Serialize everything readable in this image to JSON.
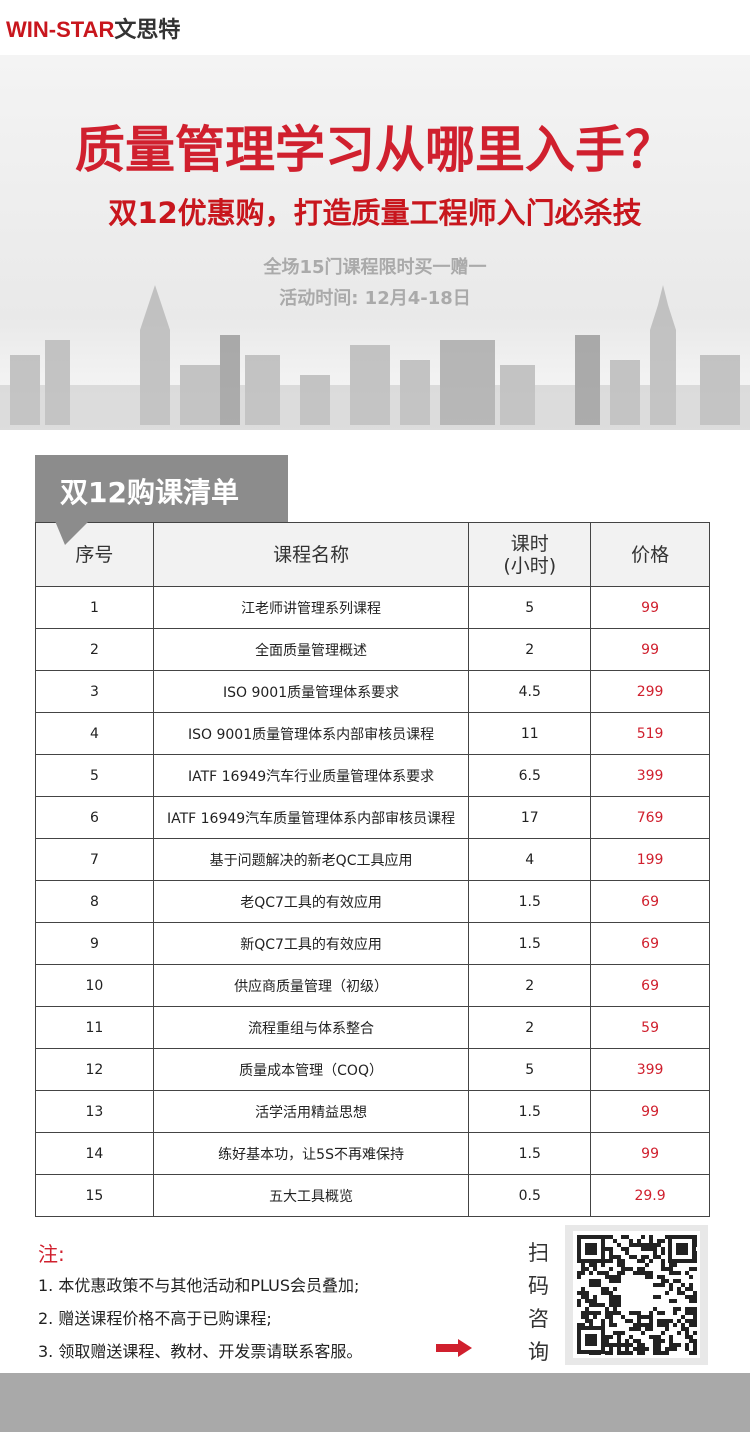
{
  "header": {
    "logo_en": "WIN-STAR",
    "logo_cn": "文思特"
  },
  "banner": {
    "title": "质量管理学习从哪里入手？",
    "subtitle": "双12优惠购，打造质量工程师入门必杀技",
    "line1": "全场15门课程限时买一赠一",
    "line2": "活动时间: 12月4-18日"
  },
  "list": {
    "tab": "双12购课清单",
    "table": {
      "columns": [
        "序号",
        "课程名称",
        "课时\n(小时)",
        "价格"
      ],
      "rows": [
        [
          "1",
          "江老师讲管理系列课程",
          "5",
          "99"
        ],
        [
          "2",
          "全面质量管理概述",
          "2",
          "99"
        ],
        [
          "3",
          "ISO 9001质量管理体系要求",
          "4.5",
          "299"
        ],
        [
          "4",
          "ISO 9001质量管理体系内部审核员课程",
          "11",
          "519"
        ],
        [
          "5",
          "IATF 16949汽车行业质量管理体系要求",
          "6.5",
          "399"
        ],
        [
          "6",
          "IATF 16949汽车质量管理体系内部审核员课程",
          "17",
          "769"
        ],
        [
          "7",
          "基于问题解决的新老QC工具应用",
          "4",
          "199"
        ],
        [
          "8",
          "老QC7工具的有效应用",
          "1.5",
          "69"
        ],
        [
          "9",
          "新QC7工具的有效应用",
          "1.5",
          "69"
        ],
        [
          "10",
          "供应商质量管理（初级）",
          "2",
          "69"
        ],
        [
          "11",
          "流程重组与体系整合",
          "2",
          "59"
        ],
        [
          "12",
          "质量成本管理（COQ）",
          "5",
          "399"
        ],
        [
          "13",
          "活学活用精益思想",
          "1.5",
          "99"
        ],
        [
          "14",
          "练好基本功，让5S不再难保持",
          "1.5",
          "99"
        ],
        [
          "15",
          "五大工具概览",
          "0.5",
          "29.9"
        ]
      ]
    }
  },
  "notes": {
    "label": "注:",
    "items": [
      "1. 本优惠政策不与其他活动和PLUS会员叠加;",
      "2. 赠送课程价格不高于已购课程;",
      "3. 领取赠送课程、教材、开发票请联系客服。"
    ],
    "scan": [
      "扫",
      "码",
      "咨",
      "询"
    ]
  }
}
